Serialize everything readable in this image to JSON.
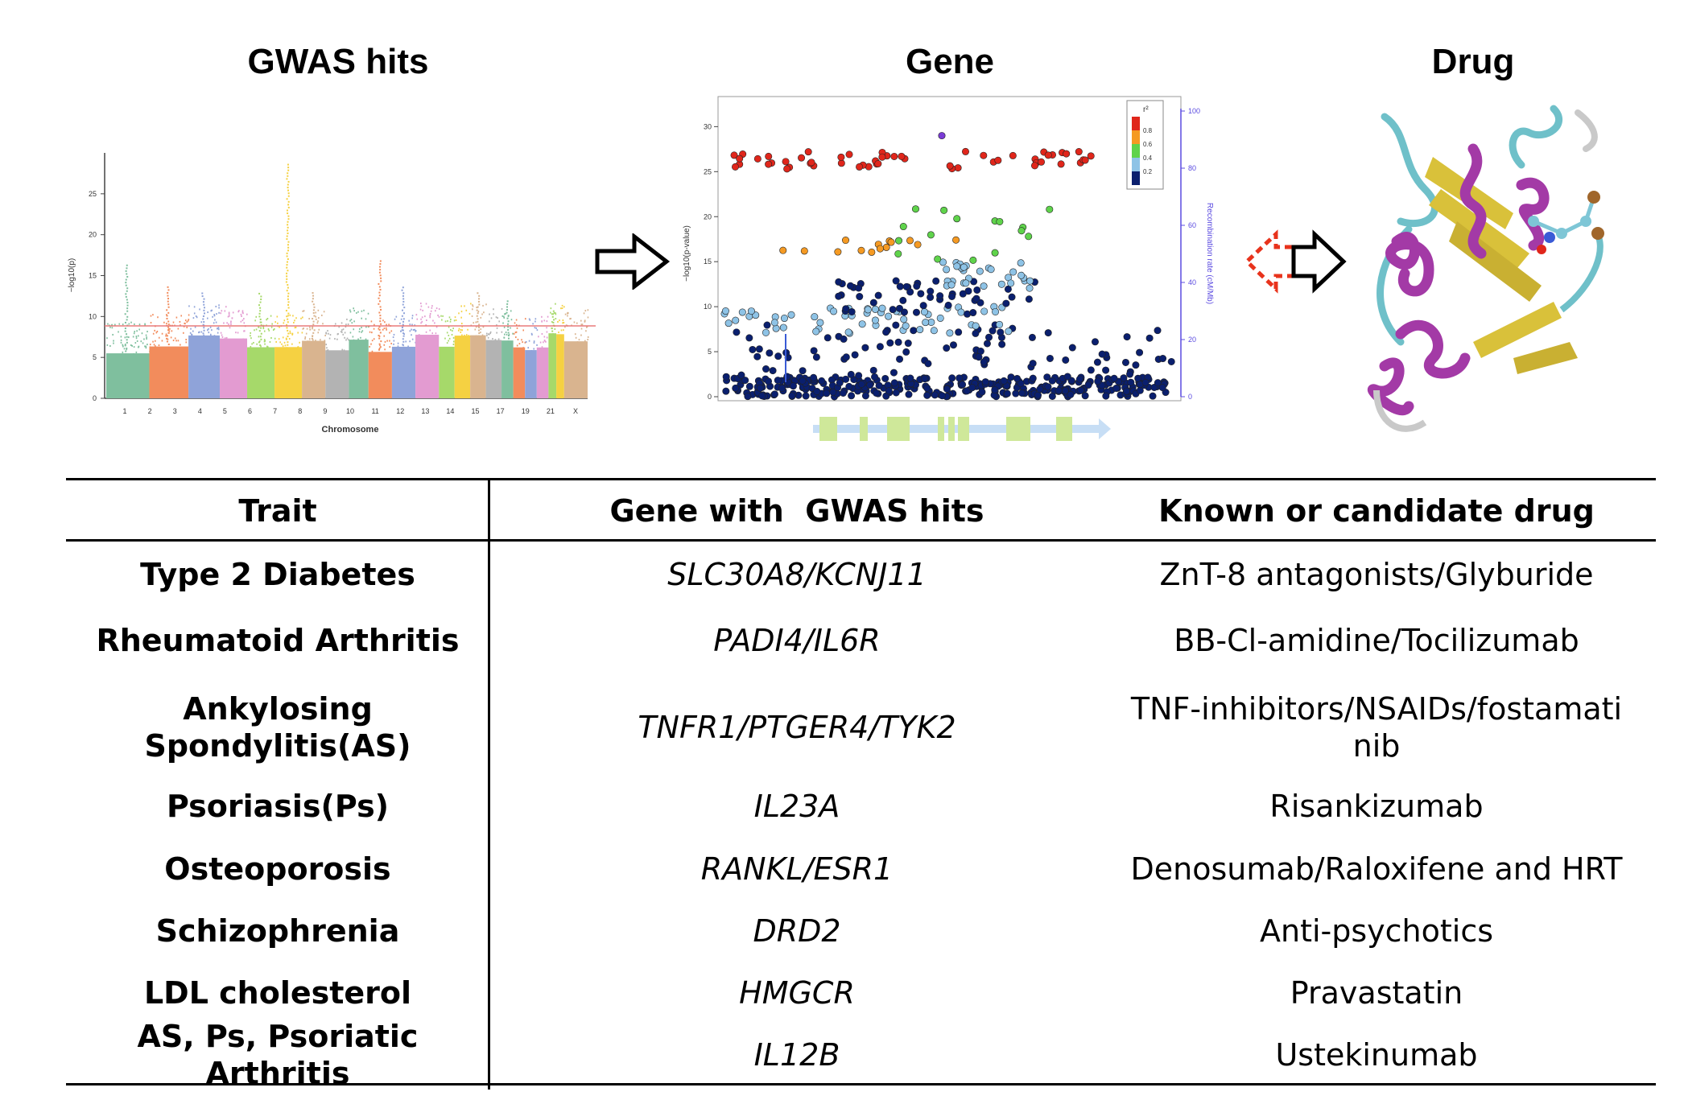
{
  "panels": {
    "gwas_title": "GWAS hits",
    "gene_title": "Gene",
    "drug_title": "Drug"
  },
  "manhattan": {
    "xlabel": "Chromosome",
    "ylabel": "−log10(p)",
    "y_ticks": [
      "0",
      "5",
      "10",
      "15",
      "20",
      "25"
    ],
    "chrom_labels": [
      "1",
      "2",
      "3",
      "4",
      "5",
      "6",
      "7",
      "8",
      "9",
      "10",
      "11",
      "12",
      "13",
      "14",
      "15",
      "17",
      "19",
      "21",
      "X"
    ],
    "threshold_color": "#e87a7a",
    "chrom_colors": [
      "#7fbf9e",
      "#f28c5c",
      "#8fa3d9",
      "#e39bd1",
      "#a6d96a",
      "#f5d142",
      "#d9b48f",
      "#b3b3b3"
    ]
  },
  "locuszoom": {
    "ylabel_left": "−log10(p-value)",
    "ylabel_right": "Recombination rate (cM/Mb)",
    "y_ticks_left": [
      "0",
      "5",
      "10",
      "15",
      "20",
      "25",
      "30"
    ],
    "y_ticks_right": [
      "0",
      "20",
      "40",
      "60",
      "80",
      "100"
    ],
    "legend_title": "r²",
    "legend_ticks": [
      "0.8",
      "0.6",
      "0.4",
      "0.2"
    ],
    "legend_colors": [
      "#e0261b",
      "#f59a23",
      "#5fd34b",
      "#8ec3e6",
      "#0a1f6e"
    ]
  },
  "arrows": {
    "outline_color": "#000000",
    "dashed_color": "#e8331c"
  },
  "protein": {
    "helix_color": "#a33aa6",
    "sheet_color": "#d9c13a",
    "coil_color": "#6fc0c9"
  },
  "table": {
    "headers": {
      "trait": "Trait",
      "gene": "Gene with  GWAS hits",
      "drug": "Known or candidate drug"
    },
    "rows": [
      {
        "trait": "Type 2 Diabetes",
        "gene": "SLC30A8/KCNJ11",
        "drug": "ZnT-8 antagonists/Glyburide"
      },
      {
        "trait": "Rheumatoid Arthritis",
        "gene": "PADI4/IL6R",
        "drug": "BB-Cl-amidine/Tocilizumab"
      },
      {
        "trait": "Ankylosing Spondylitis(AS)",
        "gene": "TNFR1/PTGER4/TYK2",
        "drug": "TNF-inhibitors/NSAIDs/fostamatinib"
      },
      {
        "trait": "Psoriasis(Ps)",
        "gene": "IL23A",
        "drug": "Risankizumab"
      },
      {
        "trait": "Osteoporosis",
        "gene": "RANKL/ESR1",
        "drug": "Denosumab/Raloxifene and HRT"
      },
      {
        "trait": "Schizophrenia",
        "gene": "DRD2",
        "drug": "Anti-psychotics"
      },
      {
        "trait": "LDL cholesterol",
        "gene": "HMGCR",
        "drug": "Pravastatin"
      },
      {
        "trait": "AS, Ps, Psoriatic Arthritis",
        "gene": "IL12B",
        "drug": "Ustekinumab"
      }
    ]
  }
}
